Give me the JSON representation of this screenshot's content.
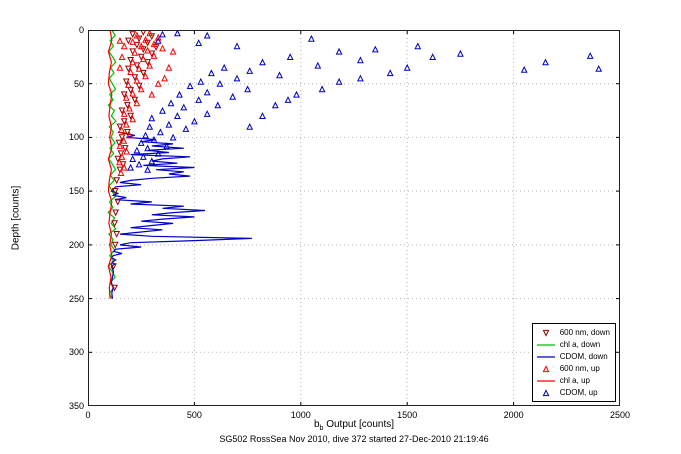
{
  "chart_data": {
    "type": "scatter",
    "title": "",
    "xlabel": "b_b Output [counts]",
    "xlabel_parts": {
      "pre": "b",
      "sub": "b",
      "post": " Output [counts]"
    },
    "ylabel": "Depth [counts]",
    "caption": "SG502 RossSea Nov 2010, dive 372 started 27-Dec-2010 21:19:46",
    "xlim": [
      0,
      2500
    ],
    "ylim": [
      0,
      350
    ],
    "y_axis_reversed": true,
    "grid": true,
    "xticks": [
      0,
      500,
      1000,
      1500,
      2000,
      2500
    ],
    "yticks": [
      0,
      50,
      100,
      150,
      200,
      250,
      300,
      350
    ],
    "legend_position": "bottom-right",
    "series": [
      {
        "name": "600 nm, down",
        "color": "#990000",
        "style": "scatter",
        "marker": "triangle-down",
        "points": [
          [
            260,
            2
          ],
          [
            210,
            4
          ],
          [
            300,
            6
          ],
          [
            240,
            8
          ],
          [
            190,
            10
          ],
          [
            280,
            12
          ],
          [
            230,
            14
          ],
          [
            320,
            16
          ],
          [
            260,
            18
          ],
          [
            210,
            20
          ],
          [
            300,
            22
          ],
          [
            250,
            25
          ],
          [
            200,
            28
          ],
          [
            280,
            30
          ],
          [
            230,
            33
          ],
          [
            190,
            36
          ],
          [
            260,
            40
          ],
          [
            220,
            44
          ],
          [
            180,
            48
          ],
          [
            240,
            52
          ],
          [
            200,
            56
          ],
          [
            170,
            60
          ],
          [
            220,
            65
          ],
          [
            185,
            70
          ],
          [
            160,
            75
          ],
          [
            200,
            80
          ],
          [
            170,
            85
          ],
          [
            150,
            90
          ],
          [
            185,
            95
          ],
          [
            160,
            100
          ],
          [
            145,
            105
          ],
          [
            175,
            110
          ],
          [
            155,
            115
          ],
          [
            140,
            120
          ],
          [
            165,
            125
          ],
          [
            150,
            130
          ],
          [
            135,
            140
          ],
          [
            128,
            150
          ],
          [
            140,
            160
          ],
          [
            130,
            170
          ],
          [
            125,
            180
          ],
          [
            135,
            190
          ],
          [
            128,
            200
          ],
          [
            120,
            220
          ],
          [
            125,
            240
          ]
        ]
      },
      {
        "name": "chl a, down",
        "color": "#00BE00",
        "style": "line",
        "marker": "none",
        "points": [
          [
            112,
            0
          ],
          [
            128,
            5
          ],
          [
            104,
            10
          ],
          [
            120,
            15
          ],
          [
            98,
            20
          ],
          [
            116,
            25
          ],
          [
            130,
            30
          ],
          [
            106,
            35
          ],
          [
            122,
            40
          ],
          [
            100,
            45
          ],
          [
            114,
            50
          ],
          [
            129,
            55
          ],
          [
            102,
            60
          ],
          [
            118,
            65
          ],
          [
            96,
            70
          ],
          [
            124,
            75
          ],
          [
            110,
            80
          ],
          [
            131,
            85
          ],
          [
            100,
            90
          ],
          [
            119,
            95
          ],
          [
            108,
            100
          ],
          [
            127,
            105
          ],
          [
            103,
            110
          ],
          [
            121,
            115
          ],
          [
            97,
            120
          ],
          [
            115,
            125
          ],
          [
            129,
            130
          ],
          [
            105,
            135
          ],
          [
            123,
            140
          ],
          [
            99,
            145
          ],
          [
            113,
            150
          ],
          [
            128,
            155
          ],
          [
            101,
            160
          ],
          [
            117,
            165
          ],
          [
            95,
            170
          ],
          [
            125,
            175
          ],
          [
            109,
            180
          ],
          [
            130,
            185
          ],
          [
            98,
            190
          ],
          [
            118,
            195
          ],
          [
            107,
            200
          ],
          [
            126,
            205
          ],
          [
            102,
            210
          ],
          [
            120,
            215
          ],
          [
            96,
            220
          ],
          [
            114,
            225
          ],
          [
            128,
            230
          ],
          [
            104,
            235
          ],
          [
            122,
            240
          ],
          [
            100,
            245
          ],
          [
            112,
            250
          ]
        ]
      },
      {
        "name": "CDOM, down",
        "color": "#0000C8",
        "style": "line",
        "marker": "none",
        "points": [
          [
            140,
            95
          ],
          [
            220,
            98
          ],
          [
            180,
            100
          ],
          [
            320,
            102
          ],
          [
            250,
            104
          ],
          [
            400,
            106
          ],
          [
            300,
            108
          ],
          [
            450,
            110
          ],
          [
            280,
            112
          ],
          [
            380,
            114
          ],
          [
            200,
            116
          ],
          [
            480,
            118
          ],
          [
            350,
            120
          ],
          [
            300,
            122
          ],
          [
            420,
            124
          ],
          [
            260,
            126
          ],
          [
            500,
            128
          ],
          [
            320,
            130
          ],
          [
            450,
            132
          ],
          [
            380,
            134
          ],
          [
            480,
            136
          ],
          [
            300,
            138
          ],
          [
            200,
            140
          ],
          [
            150,
            142
          ],
          [
            250,
            144
          ],
          [
            130,
            146
          ],
          [
            120,
            148
          ],
          [
            110,
            150
          ],
          [
            140,
            152
          ],
          [
            120,
            154
          ],
          [
            180,
            156
          ],
          [
            130,
            158
          ],
          [
            300,
            160
          ],
          [
            200,
            162
          ],
          [
            450,
            164
          ],
          [
            350,
            166
          ],
          [
            550,
            168
          ],
          [
            400,
            170
          ],
          [
            300,
            172
          ],
          [
            500,
            174
          ],
          [
            350,
            176
          ],
          [
            250,
            178
          ],
          [
            400,
            180
          ],
          [
            300,
            182
          ],
          [
            200,
            184
          ],
          [
            350,
            186
          ],
          [
            250,
            188
          ],
          [
            150,
            190
          ],
          [
            300,
            192
          ],
          [
            770,
            194
          ],
          [
            500,
            196
          ],
          [
            200,
            198
          ],
          [
            150,
            200
          ],
          [
            250,
            202
          ],
          [
            130,
            204
          ],
          [
            120,
            206
          ],
          [
            160,
            208
          ],
          [
            120,
            210
          ],
          [
            110,
            212
          ],
          [
            130,
            214
          ],
          [
            115,
            216
          ],
          [
            125,
            218
          ],
          [
            110,
            220
          ],
          [
            120,
            225
          ],
          [
            115,
            230
          ],
          [
            110,
            235
          ],
          [
            118,
            240
          ],
          [
            112,
            245
          ],
          [
            115,
            250
          ]
        ]
      },
      {
        "name": "600 nm, up",
        "color": "#FF0000",
        "style": "scatter",
        "marker": "triangle-up",
        "points": [
          [
            290,
            3
          ],
          [
            230,
            5
          ],
          [
            330,
            7
          ],
          [
            270,
            9
          ],
          [
            210,
            11
          ],
          [
            310,
            13
          ],
          [
            250,
            15
          ],
          [
            350,
            17
          ],
          [
            280,
            19
          ],
          [
            220,
            21
          ],
          [
            310,
            24
          ],
          [
            260,
            27
          ],
          [
            210,
            30
          ],
          [
            290,
            33
          ],
          [
            240,
            36
          ],
          [
            200,
            39
          ],
          [
            270,
            43
          ],
          [
            230,
            47
          ],
          [
            190,
            51
          ],
          [
            250,
            55
          ],
          [
            210,
            59
          ],
          [
            180,
            63
          ],
          [
            230,
            68
          ],
          [
            195,
            73
          ],
          [
            170,
            78
          ],
          [
            210,
            83
          ],
          [
            180,
            88
          ],
          [
            158,
            93
          ],
          [
            195,
            98
          ],
          [
            168,
            103
          ],
          [
            150,
            108
          ],
          [
            182,
            113
          ],
          [
            160,
            118
          ],
          [
            148,
            123
          ],
          [
            170,
            128
          ],
          [
            155,
            133
          ],
          [
            380,
            35
          ],
          [
            400,
            20
          ],
          [
            360,
            45
          ],
          [
            150,
            35
          ],
          [
            330,
            50
          ],
          [
            300,
            60
          ],
          [
            170,
            15
          ],
          [
            150,
            10
          ],
          [
            160,
            25
          ]
        ]
      },
      {
        "name": "chl a, up",
        "color": "#FF0000",
        "style": "line",
        "marker": "none",
        "points": [
          [
            104,
            0
          ],
          [
            112,
            10
          ],
          [
            96,
            20
          ],
          [
            110,
            30
          ],
          [
            100,
            40
          ],
          [
            96,
            50
          ],
          [
            112,
            60
          ],
          [
            104,
            70
          ],
          [
            98,
            80
          ],
          [
            110,
            90
          ],
          [
            102,
            100
          ],
          [
            112,
            110
          ],
          [
            96,
            120
          ],
          [
            110,
            130
          ],
          [
            100,
            140
          ],
          [
            96,
            150
          ],
          [
            112,
            160
          ],
          [
            104,
            170
          ],
          [
            98,
            180
          ],
          [
            110,
            190
          ],
          [
            102,
            200
          ],
          [
            112,
            210
          ],
          [
            96,
            220
          ],
          [
            108,
            230
          ],
          [
            100,
            240
          ],
          [
            104,
            250
          ]
        ]
      },
      {
        "name": "CDOM, up",
        "color": "#0000C8",
        "style": "scatter",
        "marker": "triangle-up",
        "points": [
          [
            420,
            3
          ],
          [
            560,
            5
          ],
          [
            350,
            4
          ],
          [
            330,
            10
          ],
          [
            520,
            12
          ],
          [
            700,
            15
          ],
          [
            1050,
            8
          ],
          [
            1180,
            20
          ],
          [
            950,
            25
          ],
          [
            1350,
            18
          ],
          [
            820,
            30
          ],
          [
            640,
            35
          ],
          [
            760,
            38
          ],
          [
            580,
            40
          ],
          [
            900,
            42
          ],
          [
            700,
            45
          ],
          [
            530,
            48
          ],
          [
            620,
            50
          ],
          [
            480,
            52
          ],
          [
            750,
            55
          ],
          [
            560,
            58
          ],
          [
            430,
            60
          ],
          [
            680,
            62
          ],
          [
            520,
            65
          ],
          [
            390,
            68
          ],
          [
            610,
            70
          ],
          [
            450,
            72
          ],
          [
            350,
            75
          ],
          [
            560,
            78
          ],
          [
            420,
            80
          ],
          [
            300,
            82
          ],
          [
            500,
            85
          ],
          [
            380,
            88
          ],
          [
            290,
            90
          ],
          [
            460,
            92
          ],
          [
            340,
            95
          ],
          [
            270,
            98
          ],
          [
            400,
            100
          ],
          [
            310,
            102
          ],
          [
            250,
            105
          ],
          [
            370,
            108
          ],
          [
            280,
            110
          ],
          [
            230,
            112
          ],
          [
            330,
            115
          ],
          [
            260,
            118
          ],
          [
            210,
            120
          ],
          [
            300,
            122
          ],
          [
            240,
            125
          ],
          [
            200,
            128
          ],
          [
            280,
            130
          ],
          [
            1500,
            35
          ],
          [
            1620,
            25
          ],
          [
            1420,
            40
          ],
          [
            1750,
            22
          ],
          [
            2050,
            37
          ],
          [
            2150,
            30
          ],
          [
            2360,
            24
          ],
          [
            2400,
            36
          ],
          [
            1550,
            15
          ],
          [
            1280,
            45
          ],
          [
            1100,
            55
          ],
          [
            980,
            60
          ],
          [
            1180,
            48
          ],
          [
            1080,
            33
          ],
          [
            1280,
            28
          ],
          [
            880,
            70
          ],
          [
            820,
            80
          ],
          [
            760,
            90
          ],
          [
            940,
            65
          ]
        ]
      }
    ]
  }
}
